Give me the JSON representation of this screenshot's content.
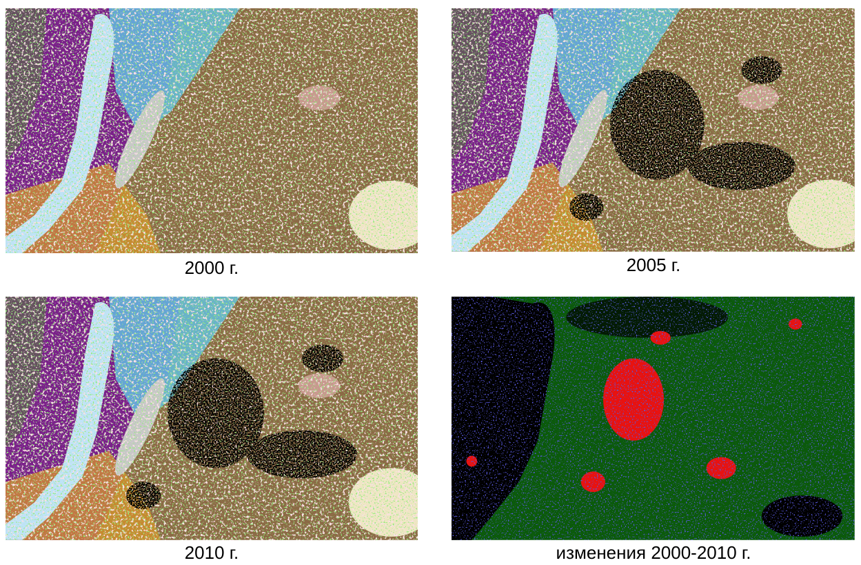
{
  "panels": [
    {
      "caption": "2000 г."
    },
    {
      "caption": "2005 г."
    },
    {
      "caption": "2010 г."
    },
    {
      "caption": "изменения 2000-2010 г."
    }
  ]
}
